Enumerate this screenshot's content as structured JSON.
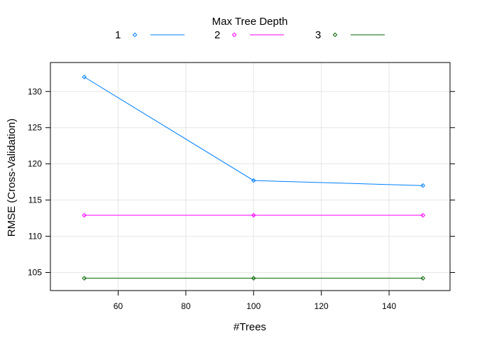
{
  "chart_data": {
    "type": "line",
    "xlabel": "#Trees",
    "ylabel": "RMSE (Cross-Validation)",
    "legend_title": "Max Tree Depth",
    "legend_position": "top",
    "grid": true,
    "xlim": [
      40,
      158
    ],
    "ylim": [
      102.5,
      134
    ],
    "x_ticks": [
      60,
      80,
      100,
      120,
      140
    ],
    "y_ticks": [
      105,
      110,
      115,
      120,
      125,
      130
    ],
    "x": [
      50,
      100,
      150
    ],
    "series": [
      {
        "name": "1",
        "color": "#0080ff",
        "values": [
          132.0,
          117.7,
          117.0
        ]
      },
      {
        "name": "2",
        "color": "#ff00ff",
        "values": [
          112.9,
          112.9,
          112.9
        ]
      },
      {
        "name": "3",
        "color": "#006400",
        "values": [
          104.2,
          104.2,
          104.2
        ]
      }
    ]
  }
}
